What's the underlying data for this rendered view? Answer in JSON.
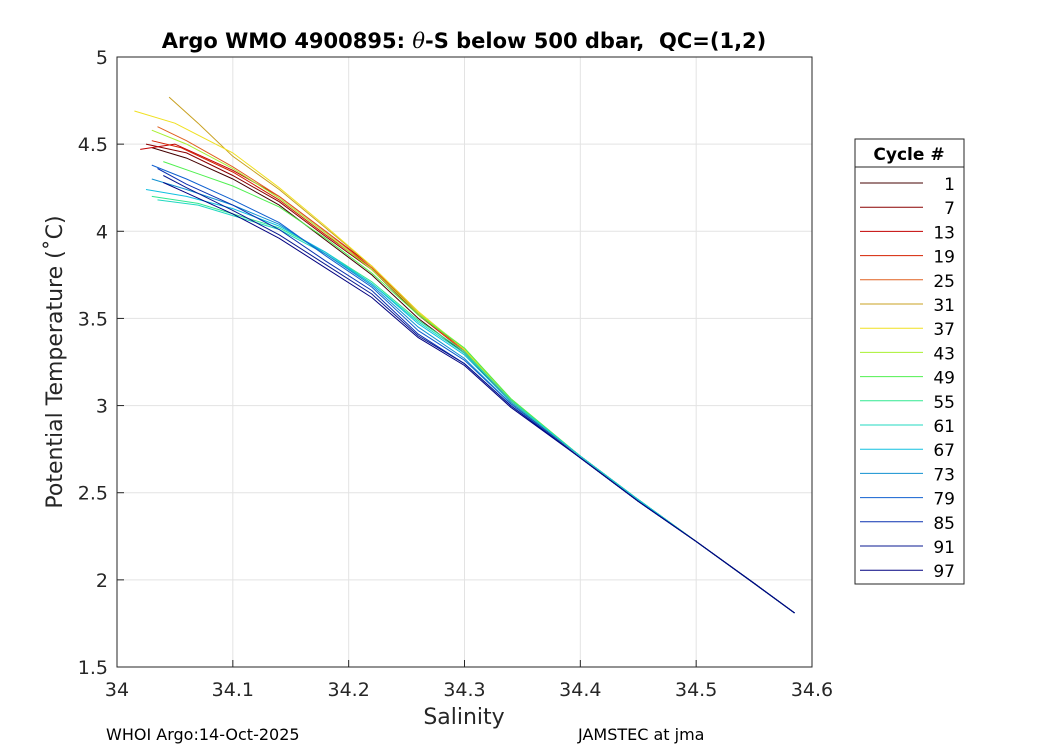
{
  "chart_data": {
    "type": "line",
    "title_prefix": "Argo WMO 4900895: ",
    "title_theta": "θ",
    "title_suffix": "-S below 500 dbar,  QC=(1,2)",
    "xlabel": "Salinity",
    "ylabel": "Potential Temperature (˚C)",
    "xlim": [
      34.0,
      34.6
    ],
    "ylim": [
      1.5,
      5.0
    ],
    "xticks": [
      "34",
      "34.1",
      "34.2",
      "34.3",
      "34.4",
      "34.5",
      "34.6"
    ],
    "yticks": [
      "1.5",
      "2",
      "2.5",
      "3",
      "3.5",
      "4",
      "4.5",
      "5"
    ],
    "grid": true,
    "legend": {
      "title": "Cycle #",
      "placement": "outside-right",
      "entries": [
        {
          "label": "1",
          "color": "#440000"
        },
        {
          "label": "7",
          "color": "#8a0000"
        },
        {
          "label": "13",
          "color": "#c20000"
        },
        {
          "label": "19",
          "color": "#d42000"
        },
        {
          "label": "25",
          "color": "#e06020"
        },
        {
          "label": "31",
          "color": "#c8a020"
        },
        {
          "label": "37",
          "color": "#f0e020"
        },
        {
          "label": "43",
          "color": "#a8f030"
        },
        {
          "label": "49",
          "color": "#50f050"
        },
        {
          "label": "55",
          "color": "#30e890"
        },
        {
          "label": "61",
          "color": "#20d8c0"
        },
        {
          "label": "67",
          "color": "#10c0e0"
        },
        {
          "label": "73",
          "color": "#1090d0"
        },
        {
          "label": "79",
          "color": "#1060d0"
        },
        {
          "label": "85",
          "color": "#0a30b0"
        },
        {
          "label": "91",
          "color": "#081890"
        },
        {
          "label": "97",
          "color": "#000080"
        }
      ]
    },
    "series": [
      {
        "name": "1",
        "x": [
          34.03,
          34.06,
          34.1,
          34.14,
          34.18,
          34.22,
          34.26,
          34.3,
          34.34,
          34.4,
          34.45,
          34.5,
          34.55,
          34.585
        ],
        "y": [
          4.48,
          4.42,
          4.3,
          4.15,
          3.95,
          3.75,
          3.5,
          3.3,
          3.02,
          2.7,
          2.45,
          2.22,
          1.98,
          1.81
        ]
      },
      {
        "name": "7",
        "x": [
          34.025,
          34.06,
          34.1,
          34.14,
          34.18,
          34.22,
          34.26,
          34.3,
          34.34,
          34.4,
          34.45,
          34.5,
          34.55,
          34.585
        ],
        "y": [
          4.5,
          4.45,
          4.32,
          4.17,
          3.97,
          3.78,
          3.52,
          3.31,
          3.03,
          2.71,
          2.46,
          2.22,
          1.98,
          1.81
        ]
      },
      {
        "name": "13",
        "x": [
          34.02,
          34.05,
          34.1,
          34.14,
          34.18,
          34.22,
          34.26,
          34.3,
          34.34,
          34.4,
          34.45,
          34.5,
          34.55,
          34.585
        ],
        "y": [
          4.47,
          4.5,
          4.35,
          4.2,
          4.0,
          3.8,
          3.53,
          3.32,
          3.03,
          2.71,
          2.46,
          2.22,
          1.98,
          1.81
        ]
      },
      {
        "name": "19",
        "x": [
          34.03,
          34.055,
          34.1,
          34.14,
          34.18,
          34.22,
          34.26,
          34.3,
          34.34,
          34.4,
          34.45,
          34.5,
          34.55,
          34.585
        ],
        "y": [
          4.52,
          4.48,
          4.34,
          4.18,
          3.98,
          3.79,
          3.52,
          3.31,
          3.02,
          2.71,
          2.45,
          2.22,
          1.98,
          1.81
        ]
      },
      {
        "name": "25",
        "x": [
          34.035,
          34.06,
          34.1,
          34.14,
          34.18,
          34.22,
          34.26,
          34.3,
          34.34,
          34.4,
          34.45,
          34.5,
          34.55,
          34.585
        ],
        "y": [
          4.6,
          4.52,
          4.37,
          4.2,
          4.0,
          3.79,
          3.53,
          3.31,
          3.03,
          2.71,
          2.46,
          2.22,
          1.98,
          1.81
        ]
      },
      {
        "name": "31",
        "x": [
          34.045,
          34.07,
          34.1,
          34.14,
          34.18,
          34.22,
          34.26,
          34.3,
          34.34,
          34.4,
          34.45,
          34.5,
          34.55,
          34.585
        ],
        "y": [
          4.77,
          4.62,
          4.43,
          4.24,
          4.02,
          3.8,
          3.54,
          3.32,
          3.03,
          2.71,
          2.46,
          2.22,
          1.98,
          1.81
        ]
      },
      {
        "name": "37",
        "x": [
          34.015,
          34.05,
          34.1,
          34.14,
          34.18,
          34.22,
          34.26,
          34.3,
          34.34,
          34.4,
          34.45,
          34.5,
          34.55,
          34.585
        ],
        "y": [
          4.69,
          4.62,
          4.45,
          4.25,
          4.03,
          3.8,
          3.54,
          3.32,
          3.03,
          2.71,
          2.46,
          2.22,
          1.98,
          1.81
        ]
      },
      {
        "name": "43",
        "x": [
          34.03,
          34.06,
          34.1,
          34.14,
          34.18,
          34.22,
          34.26,
          34.3,
          34.34,
          34.4,
          34.45,
          34.5,
          34.55,
          34.585
        ],
        "y": [
          4.58,
          4.5,
          4.36,
          4.19,
          3.99,
          3.78,
          3.53,
          3.33,
          3.04,
          2.71,
          2.46,
          2.22,
          1.98,
          1.81
        ]
      },
      {
        "name": "49",
        "x": [
          34.04,
          34.07,
          34.1,
          34.14,
          34.18,
          34.22,
          34.26,
          34.3,
          34.34,
          34.4,
          34.45,
          34.5,
          34.55,
          34.585
        ],
        "y": [
          4.4,
          4.33,
          4.26,
          4.14,
          3.96,
          3.76,
          3.52,
          3.33,
          3.04,
          2.71,
          2.46,
          2.22,
          1.98,
          1.81
        ]
      },
      {
        "name": "55",
        "x": [
          34.03,
          34.07,
          34.1,
          34.14,
          34.18,
          34.22,
          34.26,
          34.3,
          34.34,
          34.4,
          34.45,
          34.5,
          34.55,
          34.585
        ],
        "y": [
          4.2,
          4.16,
          4.1,
          4.02,
          3.88,
          3.71,
          3.49,
          3.31,
          3.03,
          2.71,
          2.46,
          2.22,
          1.98,
          1.81
        ]
      },
      {
        "name": "61",
        "x": [
          34.035,
          34.07,
          34.1,
          34.14,
          34.18,
          34.22,
          34.26,
          34.3,
          34.34,
          34.4,
          34.45,
          34.5,
          34.55,
          34.585
        ],
        "y": [
          4.18,
          4.15,
          4.09,
          4.01,
          3.87,
          3.7,
          3.48,
          3.3,
          3.03,
          2.71,
          2.46,
          2.22,
          1.98,
          1.81
        ]
      },
      {
        "name": "67",
        "x": [
          34.025,
          34.06,
          34.1,
          34.14,
          34.18,
          34.22,
          34.26,
          34.3,
          34.34,
          34.4,
          34.45,
          34.5,
          34.55,
          34.585
        ],
        "y": [
          4.24,
          4.2,
          4.13,
          4.03,
          3.88,
          3.7,
          3.47,
          3.29,
          3.02,
          2.71,
          2.46,
          2.22,
          1.98,
          1.81
        ]
      },
      {
        "name": "73",
        "x": [
          34.03,
          34.06,
          34.1,
          34.14,
          34.18,
          34.22,
          34.26,
          34.3,
          34.34,
          34.4,
          34.45,
          34.5,
          34.55,
          34.585
        ],
        "y": [
          4.3,
          4.24,
          4.15,
          4.04,
          3.87,
          3.69,
          3.45,
          3.27,
          3.01,
          2.7,
          2.45,
          2.22,
          1.98,
          1.81
        ]
      },
      {
        "name": "79",
        "x": [
          34.03,
          34.06,
          34.1,
          34.14,
          34.18,
          34.22,
          34.26,
          34.3,
          34.34,
          34.4,
          34.45,
          34.5,
          34.55,
          34.585
        ],
        "y": [
          4.38,
          4.3,
          4.18,
          4.05,
          3.86,
          3.68,
          3.43,
          3.26,
          3.01,
          2.7,
          2.45,
          2.22,
          1.98,
          1.81
        ]
      },
      {
        "name": "85",
        "x": [
          34.035,
          34.06,
          34.1,
          34.14,
          34.18,
          34.22,
          34.26,
          34.3,
          34.34,
          34.4,
          34.45,
          34.5,
          34.55,
          34.585
        ],
        "y": [
          4.36,
          4.27,
          4.15,
          4.01,
          3.83,
          3.66,
          3.41,
          3.24,
          3.0,
          2.7,
          2.45,
          2.22,
          1.98,
          1.81
        ]
      },
      {
        "name": "91",
        "x": [
          34.04,
          34.06,
          34.1,
          34.14,
          34.18,
          34.22,
          34.26,
          34.3,
          34.34,
          34.4,
          34.45,
          34.5,
          34.55,
          34.585
        ],
        "y": [
          4.32,
          4.25,
          4.12,
          3.98,
          3.81,
          3.64,
          3.4,
          3.24,
          3.0,
          2.7,
          2.45,
          2.22,
          1.98,
          1.81
        ]
      },
      {
        "name": "97",
        "x": [
          34.04,
          34.06,
          34.1,
          34.14,
          34.18,
          34.22,
          34.26,
          34.3,
          34.34,
          34.4,
          34.45,
          34.5,
          34.55,
          34.585
        ],
        "y": [
          4.28,
          4.22,
          4.1,
          3.96,
          3.79,
          3.62,
          3.39,
          3.23,
          2.99,
          2.7,
          2.45,
          2.22,
          1.98,
          1.81
        ]
      }
    ]
  },
  "footer": {
    "left": "WHOI Argo:14-Oct-2025",
    "right": "JAMSTEC at jma"
  }
}
